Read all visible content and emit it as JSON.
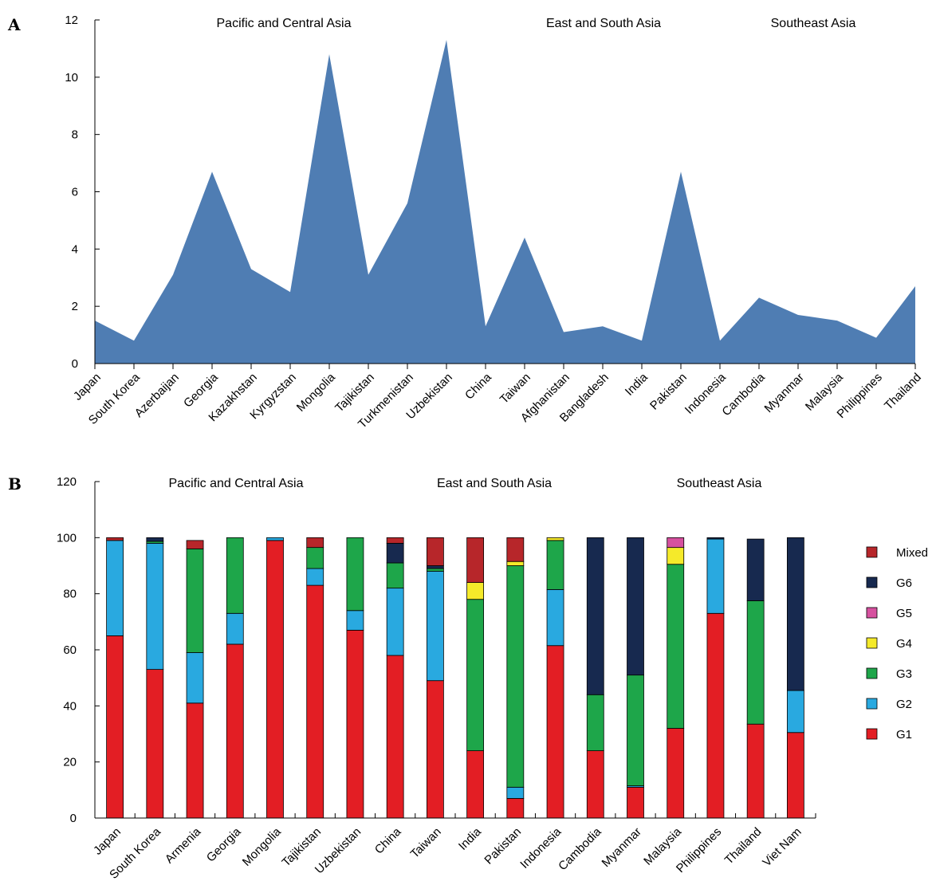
{
  "chart_data": [
    {
      "panel_label": "A",
      "type": "area",
      "color": "#4f7db3",
      "region_labels": [
        "Pacific and Central Asia",
        "East and South Asia",
        "Southeast Asia"
      ],
      "categories": [
        "Japan",
        "South Korea",
        "Azerbaijan",
        "Georgia",
        "Kazakhstan",
        "Kyrgyzstan",
        "Mongolia",
        "Tajikistan",
        "Turkmenistan",
        "Uzbekistan",
        "China",
        "Taiwan",
        "Afghanistan",
        "Bangladesh",
        "India",
        "Pakistan",
        "Indonesia",
        "Cambodia",
        "Myanmar",
        "Malaysia",
        "Philippines",
        "Thailand"
      ],
      "values": [
        1.5,
        0.8,
        3.1,
        6.7,
        3.3,
        2.5,
        10.8,
        3.1,
        5.6,
        11.3,
        1.3,
        4.4,
        1.1,
        1.3,
        0.8,
        6.7,
        0.8,
        2.3,
        1.7,
        1.5,
        0.9,
        2.7
      ],
      "ylim": [
        0,
        12
      ],
      "yticks": [
        0,
        2,
        4,
        6,
        8,
        10,
        12
      ]
    },
    {
      "panel_label": "B",
      "type": "bar",
      "stacked": true,
      "region_labels": [
        "Pacific and Central Asia",
        "East and South Asia",
        "Southeast Asia"
      ],
      "categories": [
        "Japan",
        "South Korea",
        "Armenia",
        "Georgia",
        "Mongolia",
        "Tajikistan",
        "Uzbekistan",
        "China",
        "Taiwan",
        "India",
        "Pakistan",
        "Indonesia",
        "Cambodia",
        "Myanmar",
        "Malaysia",
        "Philippines",
        "Thailand",
        "Viet Nam"
      ],
      "ylim": [
        0,
        120
      ],
      "yticks": [
        0,
        20,
        40,
        60,
        80,
        100,
        120
      ],
      "legend_order": [
        "Mixed",
        "G6",
        "G5",
        "G4",
        "G3",
        "G2",
        "G1"
      ],
      "series": [
        {
          "name": "G1",
          "color": "#e31e24",
          "values": [
            65,
            53,
            41,
            62,
            99,
            83,
            67,
            58,
            49,
            24,
            7,
            61.5,
            24,
            11,
            32,
            73,
            33.5,
            30.5
          ]
        },
        {
          "name": "G2",
          "color": "#29a9e0",
          "values": [
            34,
            45,
            18,
            11,
            1,
            6,
            7,
            24,
            39,
            0,
            4,
            20,
            0,
            0.5,
            0,
            26.5,
            0,
            15
          ]
        },
        {
          "name": "G3",
          "color": "#1ea64a",
          "values": [
            0,
            0.7,
            37,
            27,
            0,
            7.5,
            26,
            9,
            1,
            54,
            79,
            17.5,
            20,
            39.5,
            58.5,
            0,
            44,
            0
          ]
        },
        {
          "name": "G4",
          "color": "#f5ea2a",
          "values": [
            0,
            0,
            0,
            0,
            0,
            0,
            0,
            0,
            0,
            6,
            1.5,
            1,
            0,
            0,
            6,
            0,
            0,
            0
          ]
        },
        {
          "name": "G5",
          "color": "#d6519f",
          "values": [
            0,
            0,
            0,
            0,
            0,
            0,
            0,
            0,
            0,
            0,
            0,
            0,
            0,
            0,
            3.5,
            0,
            0,
            0
          ]
        },
        {
          "name": "G6",
          "color": "#17294f",
          "values": [
            0,
            1.3,
            0,
            0,
            0,
            0,
            0,
            7,
            1,
            0,
            0,
            0,
            56,
            49,
            0,
            0.5,
            22,
            54.5
          ]
        },
        {
          "name": "Mixed",
          "color": "#b7262a",
          "values": [
            1,
            0,
            3,
            0,
            0,
            3.5,
            0,
            2,
            10,
            16,
            8.5,
            0,
            0,
            0,
            0,
            0,
            0,
            0
          ]
        }
      ]
    }
  ]
}
